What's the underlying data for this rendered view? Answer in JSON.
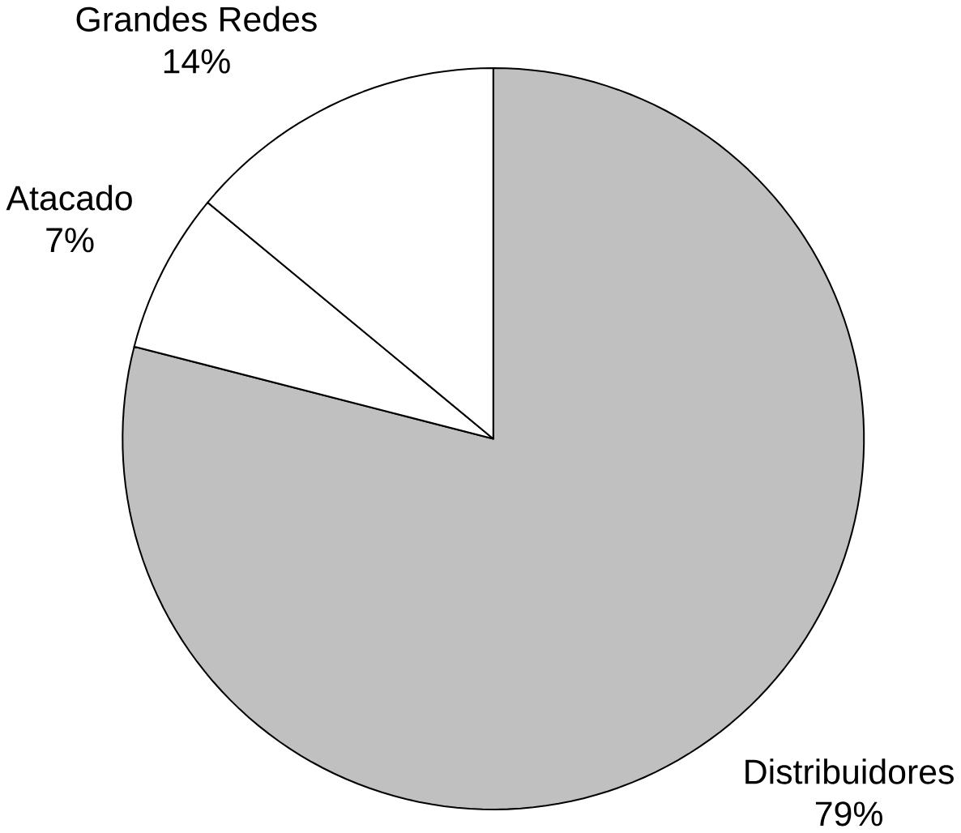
{
  "chart_data": {
    "type": "pie",
    "categories": [
      "Distribuidores",
      "Atacado",
      "Grandes Redes"
    ],
    "values": [
      79,
      7,
      14
    ],
    "colors": [
      "#c0c0c0",
      "#ffffff",
      "#ffffff"
    ],
    "value_labels": [
      "79%",
      "7%",
      "14%"
    ]
  }
}
